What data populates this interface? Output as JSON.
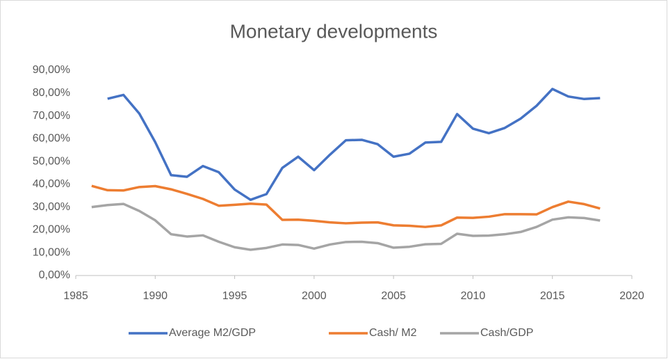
{
  "chart_data": {
    "type": "line",
    "title": "Monetary developments",
    "x": [
      1986,
      1987,
      1988,
      1989,
      1990,
      1991,
      1992,
      1993,
      1994,
      1995,
      1996,
      1997,
      1998,
      1999,
      2000,
      2001,
      2002,
      2003,
      2004,
      2005,
      2006,
      2007,
      2008,
      2009,
      2010,
      2011,
      2012,
      2013,
      2014,
      2015,
      2016,
      2017,
      2018
    ],
    "series": [
      {
        "name": "Average M2/GDP",
        "color": "#4472c4",
        "values": [
          null,
          77.5,
          79.2,
          71,
          58.5,
          44,
          43.3,
          48,
          45.3,
          37.7,
          33.2,
          35.7,
          47.2,
          52.1,
          46.2,
          53,
          59.3,
          59.5,
          57.6,
          52.1,
          53.4,
          58.3,
          58.6,
          70.8,
          64.4,
          62.4,
          64.7,
          68.8,
          74.4,
          81.8,
          78.5,
          77.4,
          77.8
        ]
      },
      {
        "name": "Cash/ M2",
        "color": "#ed7d31",
        "values": [
          39.3,
          37.4,
          37.3,
          38.8,
          39.2,
          37.8,
          35.8,
          33.6,
          30.6,
          31.0,
          31.5,
          31.1,
          24.4,
          24.5,
          24.0,
          23.3,
          22.9,
          23.2,
          23.3,
          22.0,
          21.8,
          21.3,
          22.0,
          25.4,
          25.3,
          25.8,
          26.9,
          26.9,
          26.8,
          30.0,
          32.4,
          31.3,
          29.4
        ]
      },
      {
        "name": "Cash/GDP",
        "color": "#a5a5a5",
        "values": [
          30,
          30.9,
          31.4,
          28.3,
          24.2,
          18.1,
          17.1,
          17.6,
          14.8,
          12.4,
          11.3,
          12.1,
          13.6,
          13.4,
          11.8,
          13.6,
          14.7,
          14.8,
          14.2,
          12.2,
          12.6,
          13.7,
          13.9,
          18.3,
          17.4,
          17.5,
          18.1,
          19.1,
          21.3,
          24.5,
          25.5,
          25.2,
          24.1
        ]
      }
    ],
    "xlim": [
      1985,
      2020
    ],
    "xticks": [
      1985,
      1990,
      1995,
      2000,
      2005,
      2010,
      2015,
      2020
    ],
    "ylim": [
      0,
      90
    ],
    "yticks": [
      {
        "value": 0,
        "label": "0,00%"
      },
      {
        "value": 10,
        "label": "10,00%"
      },
      {
        "value": 20,
        "label": "20,00%"
      },
      {
        "value": 30,
        "label": "30,00%"
      },
      {
        "value": 40,
        "label": "40,00%"
      },
      {
        "value": 50,
        "label": "50,00%"
      },
      {
        "value": 60,
        "label": "60,00%"
      },
      {
        "value": 70,
        "label": "70,00%"
      },
      {
        "value": 80,
        "label": "80,00%"
      },
      {
        "value": 90,
        "label": "90,00%"
      }
    ],
    "legend": "bottom"
  }
}
